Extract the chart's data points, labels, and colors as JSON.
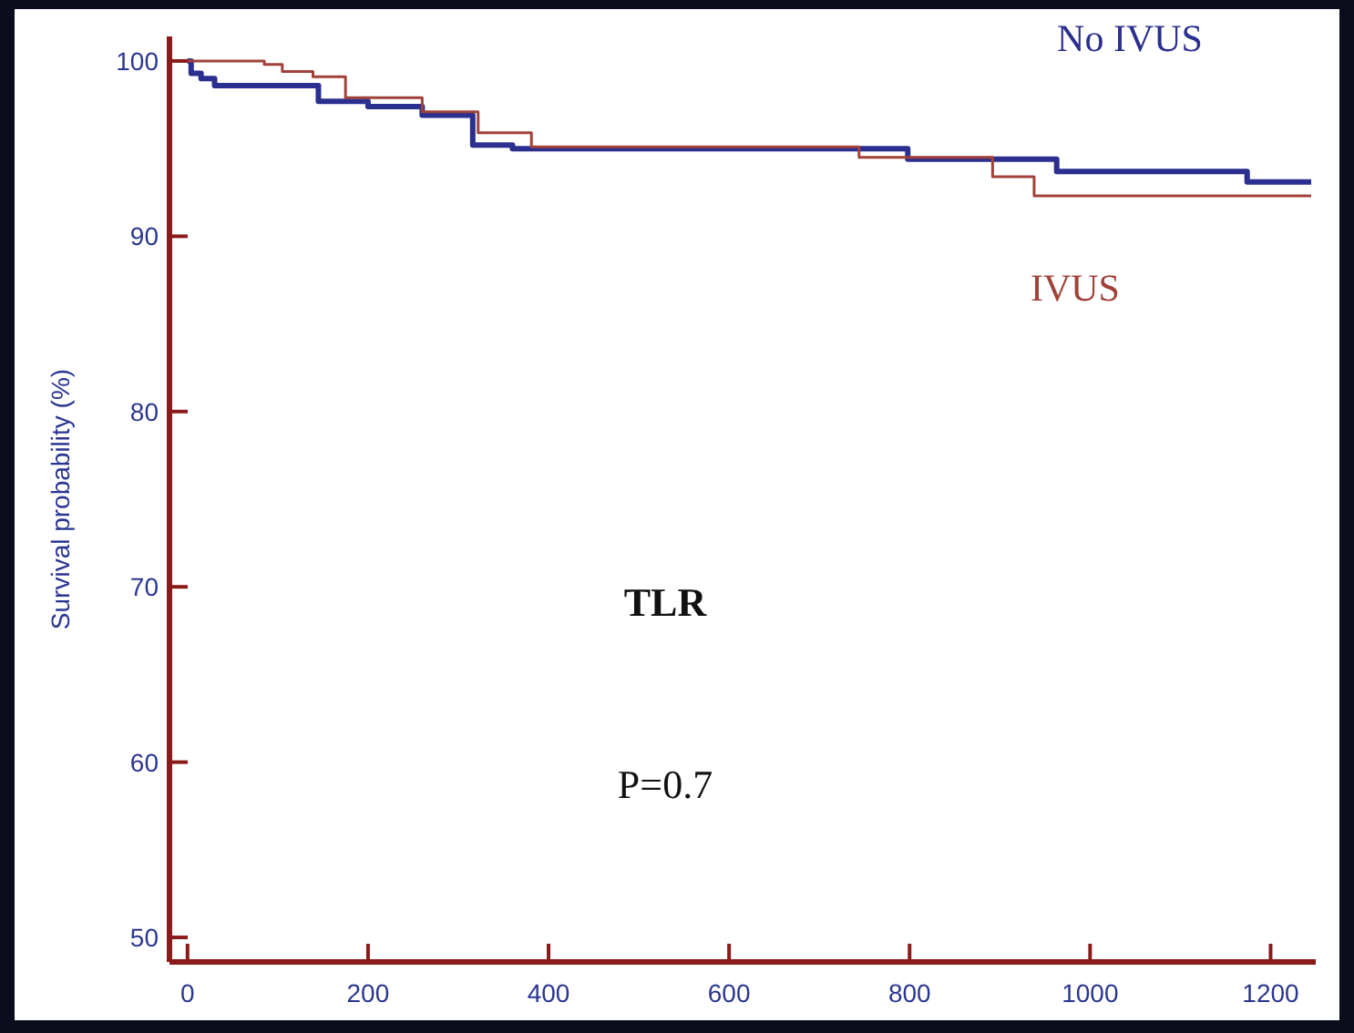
{
  "chart_data": {
    "type": "step",
    "ylabel": "Survival probability (%)",
    "xlim": [
      -20,
      1250
    ],
    "ylim": [
      48.6,
      101.4
    ],
    "xticks": [
      0,
      200,
      400,
      600,
      800,
      1000,
      1200
    ],
    "yticks": [
      50,
      60,
      70,
      80,
      90,
      100
    ],
    "grid": false,
    "annotations": [
      "TLR",
      "P=0.7"
    ],
    "series": [
      {
        "name": "No IVUS",
        "color": "#2b2f8f",
        "x": [
          0,
          4,
          15,
          30,
          145,
          200,
          260,
          316,
          360,
          798,
          963,
          1174,
          1245
        ],
        "values": [
          100,
          99.3,
          99.0,
          98.6,
          97.7,
          97.4,
          96.9,
          95.2,
          95.0,
          94.4,
          93.7,
          93.1,
          93.1
        ]
      },
      {
        "name": "IVUS",
        "color": "#a0423a",
        "x": [
          0,
          85,
          105,
          139,
          175,
          260,
          322,
          381,
          744,
          892,
          938,
          1245
        ],
        "values": [
          100,
          99.8,
          99.4,
          99.1,
          97.9,
          97.1,
          95.9,
          95.1,
          94.5,
          93.4,
          92.3,
          92.3
        ]
      }
    ]
  }
}
